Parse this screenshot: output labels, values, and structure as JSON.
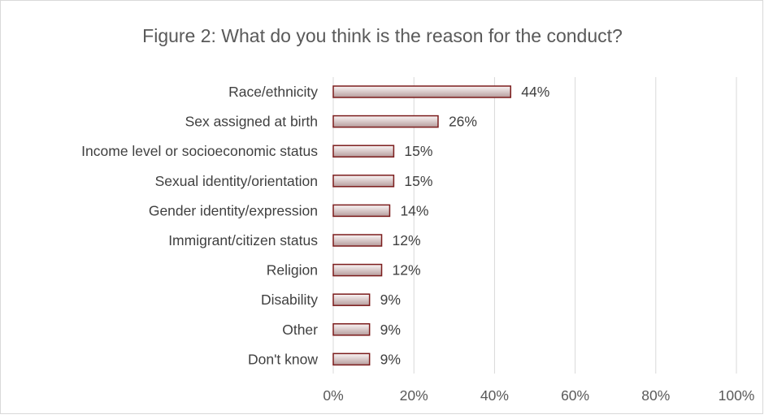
{
  "chart_data": {
    "type": "bar",
    "orientation": "horizontal",
    "title": "Figure 2: What do you think is the reason for the conduct?",
    "categories": [
      "Race/ethnicity",
      "Sex assigned at birth",
      "Income level or socioeconomic status",
      "Sexual identity/orientation",
      "Gender identity/expression",
      "Immigrant/citizen status",
      "Religion",
      "Disability",
      "Other",
      "Don't know"
    ],
    "values": [
      44,
      26,
      15,
      15,
      14,
      12,
      12,
      9,
      9,
      9
    ],
    "value_labels": [
      "44%",
      "26%",
      "15%",
      "15%",
      "14%",
      "12%",
      "12%",
      "9%",
      "9%",
      "9%"
    ],
    "x_ticks": [
      "0%",
      "20%",
      "40%",
      "60%",
      "80%",
      "100%"
    ],
    "xlim": [
      0,
      100
    ],
    "grid": true,
    "legend": false,
    "colors": {
      "bar_edge": "#7b1c1c",
      "bar_fill_light": "#fbf6f6",
      "bar_fill_dark": "#b69c9c",
      "gridline": "#d9d9d9",
      "text": "#404040"
    }
  }
}
